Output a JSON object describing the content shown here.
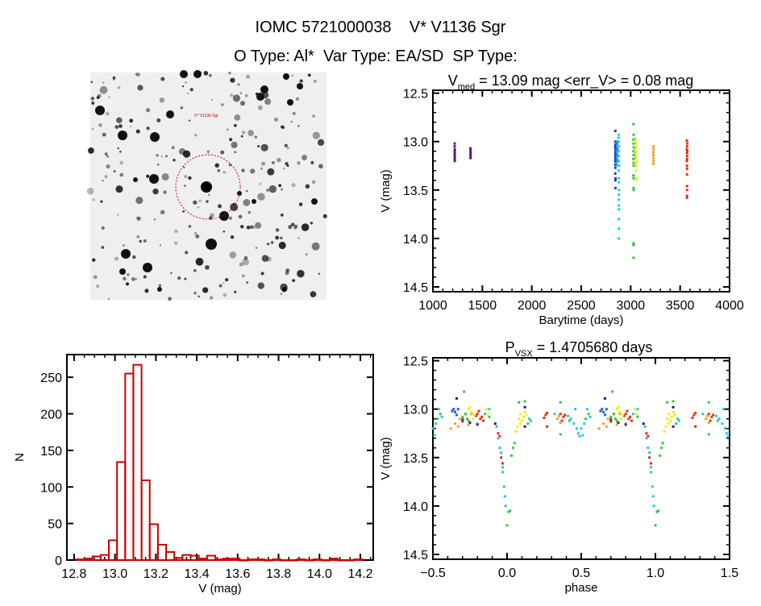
{
  "header": {
    "title_line1": "IOMC 5721000038    V* V1136 Sgr",
    "title_line2": "O Type: Al*  Var Type: EA/SD  SP Type:"
  },
  "image_panel": {
    "target_label": "V* V1136 Sgr",
    "circle_color": "#cc0000"
  },
  "chart_data": [
    {
      "type": "scatter",
      "title_parts": {
        "main": "V",
        "sub": "med",
        "rest": " = 13.09 mag <err_V> = 0.08 mag"
      },
      "xlabel": "Barytime (days)",
      "ylabel": "V (mag)",
      "xlim": [
        1000,
        4000
      ],
      "ylim": [
        14.55,
        12.47
      ],
      "y_inverted": true,
      "xticks": [
        "1000",
        "1500",
        "2000",
        "2500",
        "3000",
        "3500",
        "4000"
      ],
      "yticks": [
        "12.5",
        "13.0",
        "13.5",
        "14.0",
        "14.5"
      ],
      "groups": [
        {
          "color": "#5b1a8f",
          "points": [
            [
              1220,
              13.02
            ],
            [
              1220,
              13.05
            ],
            [
              1222,
              13.08
            ],
            [
              1220,
              13.1
            ],
            [
              1221,
              13.12
            ],
            [
              1220,
              13.14
            ],
            [
              1222,
              13.16
            ],
            [
              1220,
              13.18
            ],
            [
              1221,
              13.2
            ],
            [
              1380,
              13.07
            ],
            [
              1381,
              13.09
            ],
            [
              1380,
              13.11
            ],
            [
              1382,
              13.13
            ],
            [
              1380,
              13.15
            ],
            [
              1381,
              13.17
            ]
          ]
        },
        {
          "color": "#1a3fb8",
          "points": [
            [
              2845,
              12.89
            ],
            [
              2845,
              13.0
            ],
            [
              2847,
              13.03
            ],
            [
              2844,
              13.05
            ],
            [
              2846,
              13.07
            ],
            [
              2848,
              13.09
            ],
            [
              2845,
              13.11
            ],
            [
              2847,
              13.13
            ],
            [
              2844,
              13.15
            ],
            [
              2846,
              13.17
            ],
            [
              2845,
              13.19
            ],
            [
              2847,
              13.21
            ],
            [
              2845,
              13.24
            ],
            [
              2846,
              13.27
            ],
            [
              2844,
              13.33
            ],
            [
              2847,
              13.38
            ],
            [
              2845,
              13.4
            ],
            [
              2846,
              13.48
            ]
          ]
        },
        {
          "color": "#1e8fe0",
          "points": [
            [
              2858,
              13.0
            ],
            [
              2860,
              13.03
            ],
            [
              2862,
              13.06
            ],
            [
              2858,
              13.09
            ],
            [
              2861,
              13.12
            ],
            [
              2859,
              13.15
            ],
            [
              2862,
              13.18
            ],
            [
              2860,
              13.21
            ],
            [
              2858,
              13.24
            ],
            [
              2866,
              13.02
            ],
            [
              2868,
              13.08
            ],
            [
              2865,
              13.14
            ],
            [
              2867,
              13.2
            ]
          ]
        },
        {
          "color": "#22d0d0",
          "points": [
            [
              2880,
              12.93
            ],
            [
              2878,
              12.96
            ],
            [
              2880,
              13.0
            ],
            [
              2882,
              13.05
            ],
            [
              2879,
              13.1
            ],
            [
              2881,
              13.15
            ],
            [
              2880,
              13.2
            ],
            [
              2882,
              13.25
            ],
            [
              2879,
              13.3
            ],
            [
              2881,
              13.38
            ],
            [
              2880,
              13.42
            ],
            [
              2882,
              13.5
            ],
            [
              2880,
              13.55
            ],
            [
              2881,
              13.6
            ],
            [
              2880,
              13.66
            ],
            [
              2881,
              13.7
            ],
            [
              2880,
              13.8
            ],
            [
              2881,
              13.9
            ],
            [
              2880,
              14.0
            ]
          ]
        },
        {
          "color": "#30c840",
          "points": [
            [
              3028,
              12.82
            ],
            [
              3030,
              12.93
            ],
            [
              3027,
              12.98
            ],
            [
              3029,
              13.02
            ],
            [
              3031,
              13.06
            ],
            [
              3028,
              13.1
            ],
            [
              3030,
              13.14
            ],
            [
              3027,
              13.18
            ],
            [
              3029,
              13.22
            ],
            [
              3031,
              13.25
            ],
            [
              3028,
              13.35
            ],
            [
              3030,
              13.38
            ],
            [
              3029,
              13.48
            ],
            [
              3031,
              13.5
            ],
            [
              3028,
              14.05
            ],
            [
              3030,
              14.07
            ],
            [
              3029,
              14.2
            ]
          ]
        },
        {
          "color": "#9de020",
          "points": [
            [
              3044,
              12.97
            ],
            [
              3046,
              13.02
            ],
            [
              3043,
              13.07
            ],
            [
              3045,
              13.12
            ],
            [
              3047,
              13.17
            ],
            [
              3044,
              13.22
            ],
            [
              3046,
              13.25
            ]
          ]
        },
        {
          "color": "#f0f000",
          "points": [
            [
              3060,
              13.0
            ],
            [
              3058,
              13.05
            ],
            [
              3061,
              13.1
            ],
            [
              3059,
              13.15
            ],
            [
              3062,
              13.2
            ],
            [
              3060,
              13.25
            ],
            [
              3058,
              13.3
            ],
            [
              3061,
              13.38
            ],
            [
              3060,
              13.4
            ]
          ]
        },
        {
          "color": "#f0a020",
          "points": [
            [
              3230,
              13.05
            ],
            [
              3231,
              13.08
            ],
            [
              3229,
              13.11
            ],
            [
              3230,
              13.14
            ],
            [
              3231,
              13.17
            ],
            [
              3230,
              13.2
            ],
            [
              3229,
              13.23
            ]
          ]
        },
        {
          "color": "#e03010",
          "points": [
            [
              3568,
              12.99
            ],
            [
              3572,
              13.02
            ],
            [
              3570,
              13.05
            ],
            [
              3567,
              13.08
            ],
            [
              3573,
              13.1
            ],
            [
              3569,
              13.12
            ],
            [
              3571,
              13.15
            ],
            [
              3570,
              13.18
            ],
            [
              3568,
              13.2
            ],
            [
              3570,
              13.25
            ],
            [
              3571,
              13.28
            ],
            [
              3569,
              13.34
            ],
            [
              3570,
              13.46
            ],
            [
              3571,
              13.5
            ],
            [
              3569,
              13.56
            ],
            [
              3570,
              13.58
            ]
          ]
        }
      ]
    },
    {
      "type": "bar",
      "title": "",
      "xlabel": "V (mag)",
      "ylabel": "N",
      "xlim": [
        12.765,
        14.263
      ],
      "ylim": [
        0,
        281
      ],
      "xticks": [
        "12.8",
        "13.0",
        "13.2",
        "13.4",
        "13.6",
        "13.8",
        "14.0",
        "14.2"
      ],
      "yticks": [
        "0",
        "50",
        "100",
        "150",
        "200",
        "250"
      ],
      "bar_color": "#cc0000",
      "bin_width": 0.04,
      "bin_starts": [
        12.81,
        12.85,
        12.89,
        12.93,
        12.97,
        13.01,
        13.05,
        13.09,
        13.13,
        13.17,
        13.21,
        13.25,
        13.29,
        13.33,
        13.37,
        13.41,
        13.45,
        13.49,
        13.53,
        13.57,
        13.61,
        13.65,
        13.69,
        13.73,
        13.77,
        13.81,
        13.85,
        13.89,
        13.93,
        13.97,
        14.01,
        14.05,
        14.09,
        14.13,
        14.17
      ],
      "values": [
        1,
        2,
        5,
        7,
        27,
        134,
        255,
        267,
        109,
        49,
        21,
        11,
        3,
        7,
        6,
        2,
        6,
        1,
        2,
        2,
        0,
        1,
        1,
        0,
        1,
        0,
        0,
        1,
        0,
        1,
        0,
        2,
        0,
        0,
        1
      ]
    },
    {
      "type": "scatter",
      "title_parts": {
        "main": "P",
        "sub": "VSX",
        "rest": " = 1.4705680 days"
      },
      "xlabel": "phase",
      "ylabel": "V (mag)",
      "xlim": [
        -0.5,
        1.5
      ],
      "ylim": [
        14.55,
        12.47
      ],
      "y_inverted": true,
      "repeat_period_in_phase": 1,
      "xticks": [
        "-0.5",
        "0.0",
        "0.5",
        "1.0",
        "1.5"
      ],
      "yticks": [
        "12.5",
        "13.0",
        "13.5",
        "14.0",
        "14.5"
      ],
      "groups": [
        {
          "color": "#e03010",
          "points": [
            [
              -0.2,
              13.05
            ],
            [
              -0.18,
              13.1
            ],
            [
              -0.19,
              13.02
            ],
            [
              -0.17,
              13.08
            ],
            [
              -0.16,
              13.12
            ],
            [
              -0.21,
              13.07
            ],
            [
              -0.3,
              13.1
            ],
            [
              -0.28,
              13.05
            ],
            [
              -0.06,
              13.25
            ],
            [
              -0.05,
              13.28
            ],
            [
              -0.04,
              13.5
            ],
            [
              -0.03,
              13.56
            ],
            [
              0.26,
              13.06
            ],
            [
              0.27,
              13.04
            ],
            [
              0.25,
              13.09
            ],
            [
              0.27,
              13.18
            ],
            [
              0.36,
              13.05
            ],
            [
              0.38,
              13.08
            ],
            [
              0.37,
              13.12
            ],
            [
              0.39,
              13.06
            ]
          ]
        },
        {
          "color": "#f0a020",
          "points": [
            [
              -0.35,
              13.15
            ],
            [
              -0.33,
              13.18
            ],
            [
              -0.38,
              13.2
            ],
            [
              -0.3,
              13.13
            ],
            [
              -0.26,
              13.16
            ],
            [
              -0.32,
              13.1
            ],
            [
              -0.24,
              13.05
            ],
            [
              0.34,
              13.1
            ],
            [
              0.36,
              13.14
            ],
            [
              0.35,
              13.07
            ]
          ]
        },
        {
          "color": "#f0f000",
          "points": [
            [
              -0.26,
              13.0
            ],
            [
              -0.24,
              13.03
            ],
            [
              -0.22,
              13.06
            ],
            [
              -0.23,
              13.1
            ],
            [
              -0.25,
              12.98
            ],
            [
              -0.14,
              13.0
            ],
            [
              -0.13,
              13.05
            ],
            [
              0.08,
              13.1
            ],
            [
              0.09,
              13.05
            ],
            [
              0.1,
              13.12
            ],
            [
              0.11,
              13.08
            ],
            [
              0.07,
              13.18
            ],
            [
              0.06,
              13.23
            ],
            [
              0.12,
              13.03
            ],
            [
              0.13,
              13.06
            ],
            [
              0.09,
              13.15
            ]
          ]
        },
        {
          "color": "#30c840",
          "points": [
            [
              -0.29,
              12.82
            ],
            [
              -0.28,
              13.05
            ],
            [
              -0.27,
              13.1
            ],
            [
              -0.3,
              13.08
            ],
            [
              -0.26,
              13.12
            ],
            [
              -0.45,
              13.05
            ],
            [
              -0.47,
              13.1
            ],
            [
              0.0,
              14.2
            ],
            [
              0.01,
              14.06
            ],
            [
              0.02,
              14.05
            ],
            [
              0.03,
              13.48
            ],
            [
              0.04,
              13.4
            ],
            [
              0.05,
              13.35
            ],
            [
              0.08,
              12.93
            ],
            [
              0.12,
              12.92
            ],
            [
              0.14,
              13.15
            ],
            [
              0.36,
              12.93
            ],
            [
              0.36,
              13.26
            ],
            [
              0.42,
              13.12
            ],
            [
              -0.12,
              13.08
            ]
          ]
        },
        {
          "color": "#22c8d8",
          "points": [
            [
              -0.5,
              13.2
            ],
            [
              -0.49,
              13.27
            ],
            [
              -0.48,
              13.15
            ],
            [
              -0.46,
              13.0
            ],
            [
              -0.44,
              13.08
            ],
            [
              -0.2,
              13.15
            ],
            [
              -0.15,
              13.05
            ],
            [
              -0.12,
              13.0
            ],
            [
              -0.07,
              13.18
            ],
            [
              -0.06,
              13.3
            ],
            [
              -0.05,
              13.4
            ],
            [
              -0.04,
              13.45
            ],
            [
              -0.03,
              13.6
            ],
            [
              -0.03,
              13.65
            ],
            [
              -0.02,
              13.8
            ],
            [
              -0.015,
              13.9
            ],
            [
              -0.01,
              14.0
            ],
            [
              0.15,
              13.1
            ],
            [
              0.16,
              13.12
            ],
            [
              0.32,
              13.05
            ],
            [
              0.41,
              13.07
            ],
            [
              0.45,
              13.15
            ],
            [
              0.47,
              13.2
            ],
            [
              0.48,
              13.25
            ],
            [
              0.49,
              13.28
            ],
            [
              0.46,
              13.0
            ],
            [
              0.43,
              13.1
            ]
          ]
        },
        {
          "color": "#1e60d8",
          "points": [
            [
              -0.36,
              13.0
            ],
            [
              -0.35,
              13.03
            ],
            [
              -0.34,
              13.06
            ],
            [
              -0.37,
              13.02
            ],
            [
              -0.33,
              13.0
            ]
          ]
        },
        {
          "color": "#1a1a8c",
          "points": [
            [
              -0.34,
              12.89
            ],
            [
              0.12,
              13.18
            ],
            [
              -0.08,
              13.15
            ],
            [
              0.12,
              12.98
            ]
          ]
        },
        {
          "color": "#5b1a8f",
          "points": [
            [
              -0.25,
              13.14
            ],
            [
              -0.2,
              13.16
            ],
            [
              -0.3,
              13.12
            ]
          ]
        }
      ]
    }
  ]
}
